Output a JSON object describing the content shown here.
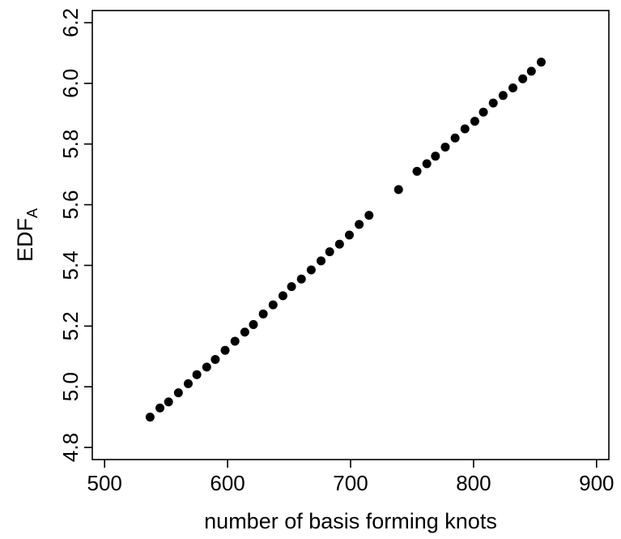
{
  "chart_data": {
    "type": "scatter",
    "xlabel": "number of basis forming knots",
    "ylabel": {
      "main": "EDF",
      "subscript": "A"
    },
    "xlim": [
      490,
      910
    ],
    "ylim": [
      4.76,
      6.24
    ],
    "x_ticks": [
      500,
      600,
      700,
      800,
      900
    ],
    "y_ticks": [
      4.8,
      5.0,
      5.2,
      5.4,
      5.6,
      5.8,
      6.0,
      6.2
    ],
    "x_tick_labels": [
      "500",
      "600",
      "700",
      "800",
      "900"
    ],
    "y_tick_labels": [
      "4.8",
      "5.0",
      "5.2",
      "5.4",
      "5.6",
      "5.8",
      "6.0",
      "6.2"
    ],
    "grid": false,
    "point_color": "#000000",
    "series": [
      {
        "points": [
          {
            "x": 537,
            "y": 4.9
          },
          {
            "x": 545,
            "y": 4.93
          },
          {
            "x": 552,
            "y": 4.95
          },
          {
            "x": 560,
            "y": 4.98
          },
          {
            "x": 568,
            "y": 5.01
          },
          {
            "x": 575,
            "y": 5.04
          },
          {
            "x": 583,
            "y": 5.065
          },
          {
            "x": 590,
            "y": 5.09
          },
          {
            "x": 598,
            "y": 5.12
          },
          {
            "x": 606,
            "y": 5.15
          },
          {
            "x": 614,
            "y": 5.18
          },
          {
            "x": 621,
            "y": 5.205
          },
          {
            "x": 629,
            "y": 5.24
          },
          {
            "x": 637,
            "y": 5.27
          },
          {
            "x": 645,
            "y": 5.3
          },
          {
            "x": 652,
            "y": 5.33
          },
          {
            "x": 660,
            "y": 5.355
          },
          {
            "x": 668,
            "y": 5.385
          },
          {
            "x": 676,
            "y": 5.415
          },
          {
            "x": 683,
            "y": 5.445
          },
          {
            "x": 691,
            "y": 5.47
          },
          {
            "x": 699,
            "y": 5.5
          },
          {
            "x": 707,
            "y": 5.535
          },
          {
            "x": 715,
            "y": 5.565
          },
          {
            "x": 739,
            "y": 5.65
          },
          {
            "x": 754,
            "y": 5.71
          },
          {
            "x": 762,
            "y": 5.735
          },
          {
            "x": 769,
            "y": 5.76
          },
          {
            "x": 777,
            "y": 5.79
          },
          {
            "x": 785,
            "y": 5.82
          },
          {
            "x": 793,
            "y": 5.85
          },
          {
            "x": 801,
            "y": 5.875
          },
          {
            "x": 808,
            "y": 5.905
          },
          {
            "x": 816,
            "y": 5.935
          },
          {
            "x": 824,
            "y": 5.96
          },
          {
            "x": 832,
            "y": 5.985
          },
          {
            "x": 840,
            "y": 6.015
          },
          {
            "x": 847,
            "y": 6.04
          },
          {
            "x": 855,
            "y": 6.07
          }
        ]
      }
    ]
  }
}
